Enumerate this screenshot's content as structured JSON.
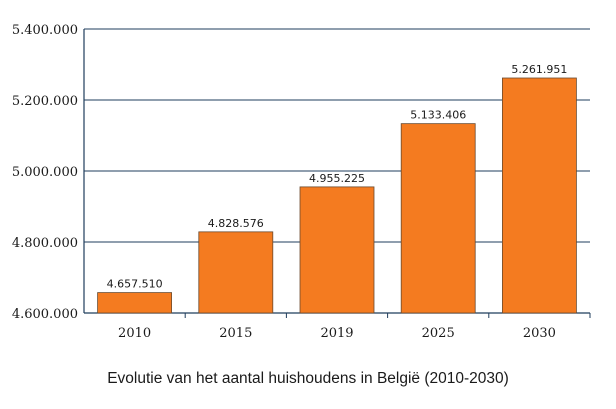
{
  "chart_data": {
    "type": "bar",
    "categories": [
      "2010",
      "2015",
      "2019",
      "2025",
      "2030"
    ],
    "values": [
      4657510,
      4828576,
      4955225,
      5133406,
      5261951
    ],
    "data_labels": [
      "4.657.510",
      "4.828.576",
      "4.955.225",
      "5.133.406",
      "5.261.951"
    ],
    "title": "Evolutie van het aantal huishoudens in België (2010-2030)",
    "xlabel": "",
    "ylabel": "",
    "ylim": [
      4600000,
      5400000
    ],
    "yticks": [
      4600000,
      4800000,
      5000000,
      5200000,
      5400000
    ],
    "ytick_labels": [
      "4.600.000",
      "4.800.000",
      "5.000.000",
      "5.200.000",
      "5.400.000"
    ],
    "grid": true,
    "legend": "none",
    "colors": {
      "bar_fill": "#f47b20",
      "bar_stroke": "#6b4a2e",
      "grid": "#1f3d5c",
      "axis": "#1f3d5c"
    }
  }
}
